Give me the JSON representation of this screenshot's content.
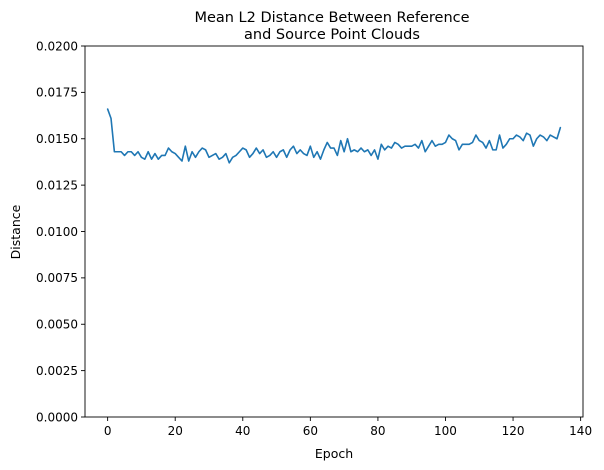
{
  "chart_data": {
    "type": "line",
    "title_lines": [
      "Mean L2 Distance Between Reference",
      "and Source Point Clouds"
    ],
    "xlabel": "Epoch",
    "ylabel": "Distance",
    "xlim": [
      -6.7,
      140.7
    ],
    "ylim": [
      0,
      0.02
    ],
    "xticks": [
      0,
      20,
      40,
      60,
      80,
      100,
      120,
      140
    ],
    "xtick_labels": [
      "0",
      "20",
      "40",
      "60",
      "80",
      "100",
      "120",
      "140"
    ],
    "yticks": [
      0,
      0.0025,
      0.005,
      0.0075,
      0.01,
      0.0125,
      0.015,
      0.0175,
      0.02
    ],
    "ytick_labels": [
      "0.0000",
      "0.0025",
      "0.0050",
      "0.0075",
      "0.0100",
      "0.0125",
      "0.0150",
      "0.0175",
      "0.0200"
    ],
    "grid": false,
    "line_color": "#1f77b4",
    "series": [
      {
        "x": [
          0,
          1,
          2,
          3,
          4,
          5,
          6,
          7,
          8,
          9,
          10,
          11,
          12,
          13,
          14,
          15,
          16,
          17,
          18,
          19,
          20,
          21,
          22,
          23,
          24,
          25,
          26,
          27,
          28,
          29,
          30,
          31,
          32,
          33,
          34,
          35,
          36,
          37,
          38,
          39,
          40,
          41,
          42,
          43,
          44,
          45,
          46,
          47,
          48,
          49,
          50,
          51,
          52,
          53,
          54,
          55,
          56,
          57,
          58,
          59,
          60,
          61,
          62,
          63,
          64,
          65,
          66,
          67,
          68,
          69,
          70,
          71,
          72,
          73,
          74,
          75,
          76,
          77,
          78,
          79,
          80,
          81,
          82,
          83,
          84,
          85,
          86,
          87,
          88,
          89,
          90,
          91,
          92,
          93,
          94,
          95,
          96,
          97,
          98,
          99,
          100,
          101,
          102,
          103,
          104,
          105,
          106,
          107,
          108,
          109,
          110,
          111,
          112,
          113,
          114,
          115,
          116,
          117,
          118,
          119,
          120,
          121,
          122,
          123,
          124,
          125,
          126,
          127,
          128,
          129,
          130,
          131,
          132,
          133,
          134
        ],
        "y": [
          0.0166,
          0.0161,
          0.0143,
          0.0143,
          0.0143,
          0.0141,
          0.0143,
          0.0143,
          0.0141,
          0.0143,
          0.014,
          0.0139,
          0.0143,
          0.0139,
          0.0142,
          0.0139,
          0.0141,
          0.0141,
          0.0145,
          0.0143,
          0.0142,
          0.014,
          0.0138,
          0.0146,
          0.0138,
          0.0143,
          0.014,
          0.0143,
          0.0145,
          0.0144,
          0.014,
          0.0141,
          0.0142,
          0.0139,
          0.014,
          0.0142,
          0.0137,
          0.014,
          0.0141,
          0.0143,
          0.0145,
          0.0144,
          0.014,
          0.0142,
          0.0145,
          0.0142,
          0.0144,
          0.014,
          0.0141,
          0.0143,
          0.014,
          0.0143,
          0.0144,
          0.014,
          0.0144,
          0.0146,
          0.0142,
          0.0144,
          0.0142,
          0.0141,
          0.0146,
          0.014,
          0.0143,
          0.0139,
          0.0144,
          0.0148,
          0.0145,
          0.0145,
          0.0141,
          0.0149,
          0.0143,
          0.015,
          0.0143,
          0.0144,
          0.0143,
          0.0145,
          0.0143,
          0.0144,
          0.0141,
          0.0144,
          0.0139,
          0.0147,
          0.0144,
          0.0146,
          0.0145,
          0.0148,
          0.0147,
          0.0145,
          0.0146,
          0.0146,
          0.0146,
          0.0147,
          0.0145,
          0.0149,
          0.0143,
          0.0146,
          0.0149,
          0.0146,
          0.0147,
          0.0147,
          0.0148,
          0.0152,
          0.015,
          0.0149,
          0.0144,
          0.0147,
          0.0147,
          0.0147,
          0.0148,
          0.0152,
          0.0149,
          0.0148,
          0.0145,
          0.0149,
          0.0144,
          0.0144,
          0.0152,
          0.0145,
          0.0147,
          0.015,
          0.015,
          0.0152,
          0.0151,
          0.0149,
          0.0153,
          0.0152,
          0.0146,
          0.015,
          0.0152,
          0.0151,
          0.0149,
          0.0152,
          0.0151,
          0.015,
          0.0156
        ]
      }
    ]
  }
}
